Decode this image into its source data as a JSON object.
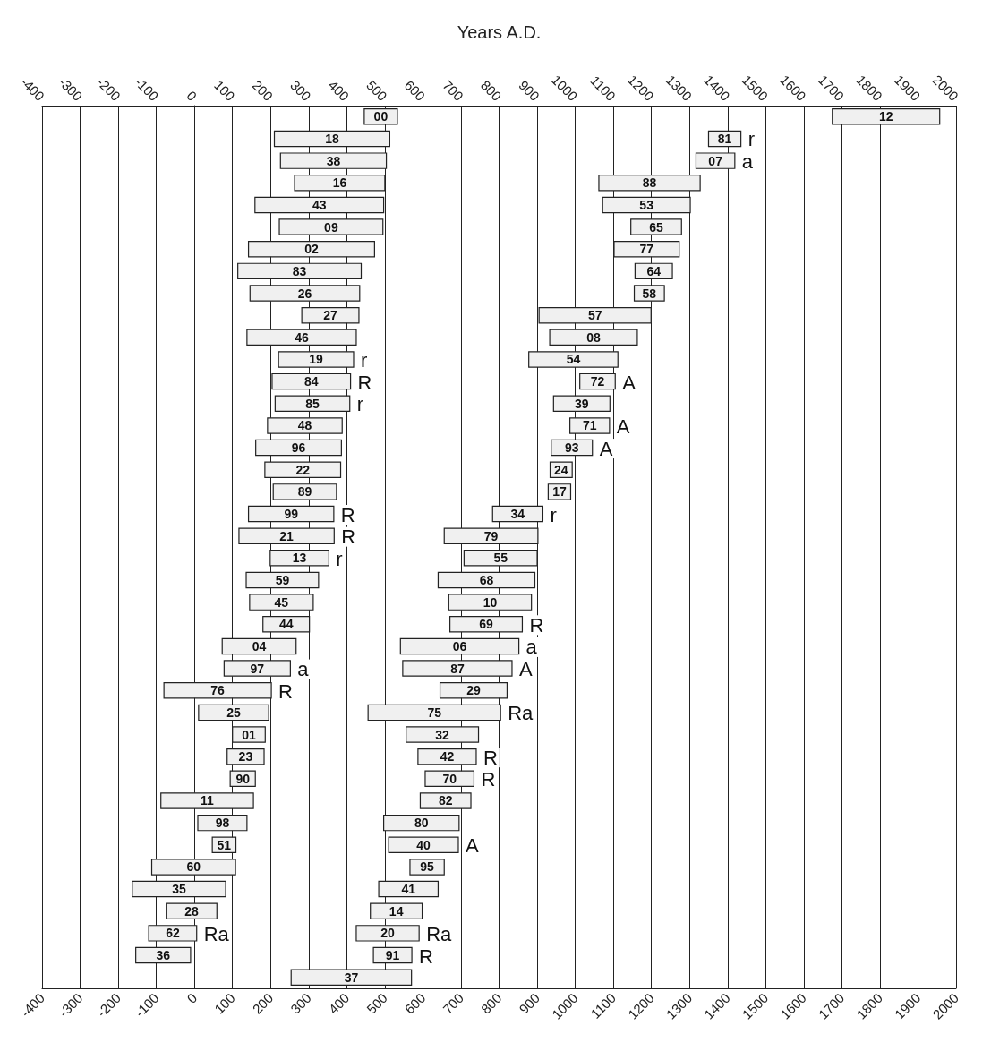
{
  "chart_data": {
    "type": "bar",
    "orientation": "horizontal",
    "x2label": "Years A.D.",
    "categories": [
      null,
      null,
      null,
      null,
      null,
      null,
      null,
      null,
      null,
      null,
      null,
      null,
      null,
      null,
      null,
      null,
      null,
      null,
      null,
      null,
      null,
      null,
      null,
      null,
      null,
      null,
      null,
      null,
      null,
      null,
      null,
      null,
      null,
      null,
      null,
      null,
      null,
      null,
      null,
      null
    ],
    "series": [
      {
        "color": "#f0f0f0",
        "base": [
          446,
          210,
          226,
          263,
          159,
          223,
          142,
          114,
          146,
          282,
          138,
          221,
          204,
          212,
          192,
          161,
          185,
          207,
          142,
          117,
          199,
          136,
          145,
          180,
          73,
          78,
          -80,
          11,
          100,
          86,
          94,
          -88,
          9,
          47,
          -112,
          -163,
          -74,
          -120,
          -154,
          254
        ],
        "values": [
          87,
          303,
          278,
          237,
          338,
          272,
          331,
          324,
          288,
          150,
          287,
          197,
          206,
          196,
          196,
          225,
          199,
          166,
          224,
          250,
          154,
          190,
          167,
          122,
          194,
          174,
          282,
          184,
          86,
          97,
          66,
          243,
          129,
          62,
          220,
          245,
          133,
          126,
          144,
          316
        ]
      },
      {
        "color": "#f0f0f0",
        "base": [
          1675,
          1350,
          1317,
          1062,
          1072,
          1146,
          1102,
          1157,
          1155,
          905,
          933,
          878,
          1012,
          943,
          986,
          937,
          934,
          929,
          783,
          656,
          708,
          640,
          668,
          671,
          541,
          547,
          645,
          456,
          556,
          587,
          606,
          593,
          497,
          510,
          566,
          484,
          462,
          425,
          470,
          null
        ],
        "values": [
          282,
          85,
          102,
          266,
          230,
          133,
          171,
          98,
          79,
          294,
          230,
          234,
          93,
          148,
          104,
          108,
          58,
          59,
          132,
          246,
          192,
          254,
          217,
          190,
          311,
          287,
          176,
          348,
          190,
          153,
          128,
          133,
          198,
          183,
          90,
          156,
          136,
          165,
          101,
          null
        ]
      }
    ],
    "annotations": [
      "00",
      "18",
      "38",
      "16",
      "43",
      "09",
      "02",
      "83",
      "26",
      "27",
      "46",
      "19",
      "84",
      "85",
      "48",
      "96",
      "22",
      "89",
      "99",
      "21",
      "13",
      "59",
      "45",
      "44",
      "04",
      "97",
      "76",
      "25",
      "01",
      "23",
      "90",
      "11",
      "98",
      "51",
      "60",
      "35",
      "28",
      "62",
      "36",
      "37",
      "12",
      "81",
      "07",
      "88",
      "53",
      "65",
      "77",
      "64",
      "58",
      "57",
      "08",
      "54",
      "72",
      "39",
      "71",
      "93",
      "24",
      "17",
      "34",
      "79",
      "55",
      "68",
      "10",
      "69",
      "06",
      "87",
      "29",
      "75",
      "32",
      "42",
      "70",
      "82",
      "80",
      "40",
      "95",
      "41",
      "14",
      "20",
      "91",
      {
        "text": "r",
        "x": 418
      },
      {
        "text": "R",
        "x": 410
      },
      {
        "text": "r",
        "x": 408
      },
      {
        "text": "R",
        "x": 366
      },
      {
        "text": "R",
        "x": 367
      },
      {
        "text": "r",
        "x": 353
      },
      {
        "text": "a",
        "x": 252
      },
      {
        "text": "R",
        "x": 202
      },
      {
        "text": "Ra",
        "x": 6
      },
      {
        "text": "r",
        "x": 1435
      },
      {
        "text": "a",
        "x": 1419
      },
      {
        "text": "A",
        "x": 1105
      },
      {
        "text": "A",
        "x": 1090
      },
      {
        "text": "A",
        "x": 1045
      },
      {
        "text": "r",
        "x": 915
      },
      {
        "text": "R",
        "x": 861
      },
      {
        "text": "a",
        "x": 852
      },
      {
        "text": "A",
        "x": 834
      },
      {
        "text": "Ra",
        "x": 804
      },
      {
        "text": "R",
        "x": 740
      },
      {
        "text": "R",
        "x": 734
      },
      {
        "text": "A",
        "x": 693
      },
      {
        "text": "Ra",
        "x": 590
      },
      {
        "text": "R",
        "x": 571
      }
    ],
    "xlim": [
      -400,
      2000
    ],
    "xticks": [
      -400,
      -300,
      -200,
      -100,
      0,
      100,
      200,
      300,
      400,
      500,
      600,
      700,
      800,
      900,
      1000,
      1100,
      1200,
      1300,
      1400,
      1500,
      1600,
      1700,
      1800,
      1900,
      2000
    ],
    "x2lim": [
      -400,
      2000
    ],
    "x2ticks": [
      -400,
      -300,
      -200,
      -100,
      0,
      100,
      200,
      300,
      400,
      500,
      600,
      700,
      800,
      900,
      1000,
      1100,
      1200,
      1300,
      1400,
      1500,
      1600,
      1700,
      1800,
      1900,
      2000
    ],
    "grid": "x",
    "tick_labels": "x"
  }
}
